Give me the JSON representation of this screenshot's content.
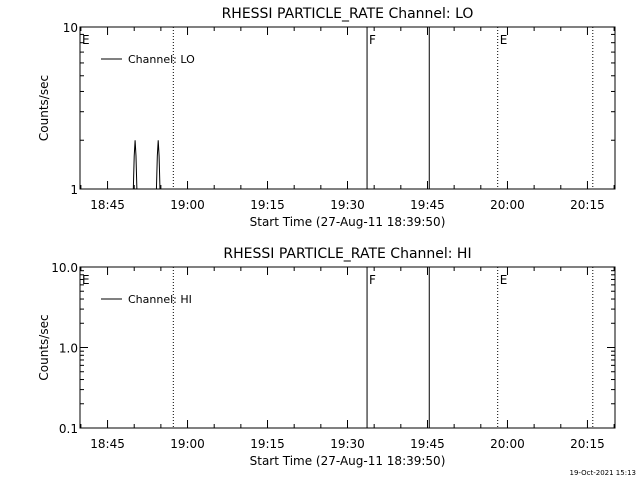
{
  "footer_timestamp": "19-Oct-2021 15:13",
  "chart_data": [
    {
      "type": "line",
      "title": "RHESSI PARTICLE_RATE Channel: LO",
      "xlabel": "Start Time (27-Aug-11 18:39:50)",
      "ylabel": "Counts/sec",
      "yscale": "log",
      "ylim": [
        1,
        10
      ],
      "xlim": [
        "18:39:50",
        "20:20:10"
      ],
      "y_tick_labels": [
        "1",
        "10"
      ],
      "x_tick_labels": [
        "18:45",
        "19:00",
        "19:15",
        "19:30",
        "19:45",
        "20:00",
        "20:15"
      ],
      "legend": {
        "label": "Channel: LO",
        "placement": "top-left"
      },
      "series": [
        {
          "name": "Channel: LO",
          "x": [
            "18:39:50",
            "18:49:50",
            "18:50:00",
            "18:50:10",
            "18:50:20",
            "18:50:30",
            "18:54:10",
            "18:54:20",
            "18:54:30",
            "18:54:40",
            "18:54:50",
            "20:20:10"
          ],
          "y": [
            1,
            1,
            1.6,
            2,
            1.6,
            1,
            1,
            1.6,
            2,
            1.6,
            1,
            1
          ]
        }
      ],
      "markers": [
        {
          "label": "E",
          "time": "18:39:50",
          "style": "dotted"
        },
        {
          "label": "",
          "time": "18:57:20",
          "style": "dotted"
        },
        {
          "label": "F",
          "time": "19:33:40",
          "style": "solid"
        },
        {
          "label": "",
          "time": "19:45:20",
          "style": "solid"
        },
        {
          "label": "E",
          "time": "19:58:10",
          "style": "dotted"
        },
        {
          "label": "",
          "time": "20:16:00",
          "style": "dotted"
        }
      ]
    },
    {
      "type": "line",
      "title": "RHESSI PARTICLE_RATE Channel: HI",
      "xlabel": "Start Time (27-Aug-11 18:39:50)",
      "ylabel": "Counts/sec",
      "yscale": "log",
      "ylim": [
        0.1,
        10
      ],
      "xlim": [
        "18:39:50",
        "20:20:10"
      ],
      "y_tick_labels": [
        "0.1",
        "1.0",
        "10.0"
      ],
      "x_tick_labels": [
        "18:45",
        "19:00",
        "19:15",
        "19:30",
        "19:45",
        "20:00",
        "20:15"
      ],
      "legend": {
        "label": "Channel: HI",
        "placement": "top-left"
      },
      "series": [
        {
          "name": "Channel: HI",
          "x": [],
          "y": []
        }
      ],
      "markers": [
        {
          "label": "E",
          "time": "18:39:50",
          "style": "dotted"
        },
        {
          "label": "",
          "time": "18:57:20",
          "style": "dotted"
        },
        {
          "label": "F",
          "time": "19:33:40",
          "style": "solid"
        },
        {
          "label": "",
          "time": "19:45:20",
          "style": "solid"
        },
        {
          "label": "E",
          "time": "19:58:10",
          "style": "dotted"
        },
        {
          "label": "",
          "time": "20:16:00",
          "style": "dotted"
        }
      ]
    }
  ]
}
